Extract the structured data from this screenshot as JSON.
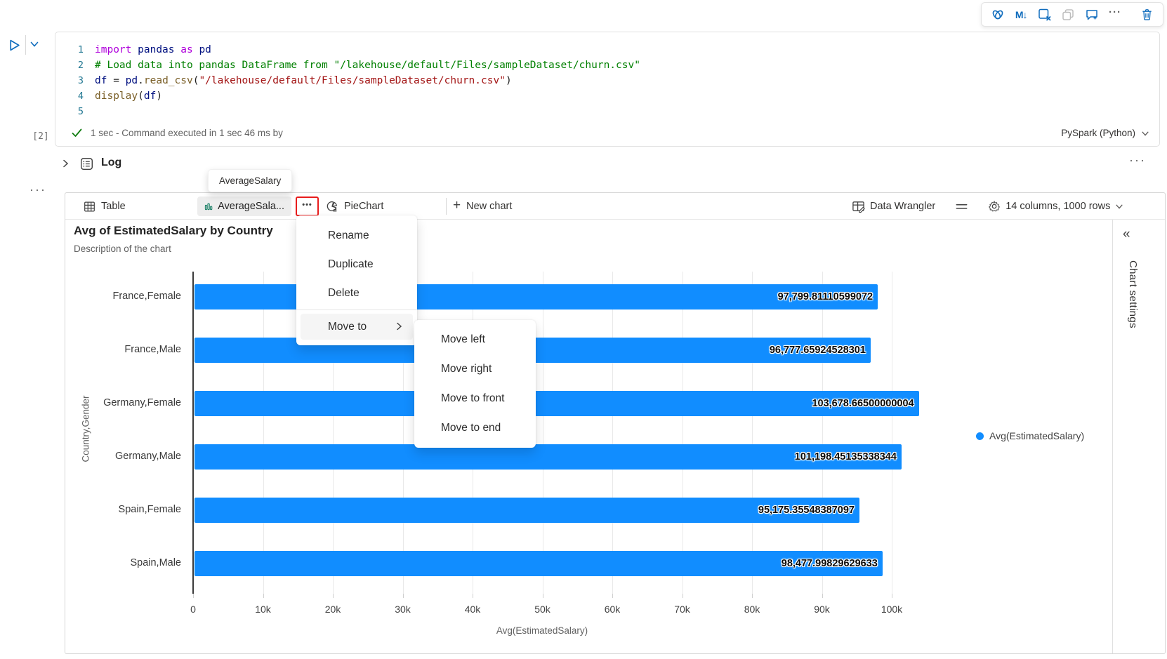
{
  "glyphs": {
    "more_dots": "•••",
    "ellipsis": "···",
    "collapse": "«",
    "plus": "+",
    "markdown": "M↓"
  },
  "cell_toolbar": {
    "icons": [
      "copilot-icon",
      "markdown-convert-icon",
      "clear-output-icon",
      "copy-cell-icon",
      "add-comment-icon",
      "more-options-icon",
      "delete-cell-icon"
    ]
  },
  "code_cell": {
    "execution_count": "[2]",
    "line_numbers": [
      "1",
      "2",
      "3",
      "4",
      "5"
    ],
    "lines": [
      [
        {
          "t": "import",
          "c": "kw"
        },
        {
          "t": " ",
          "c": "pl"
        },
        {
          "t": "pandas",
          "c": "mod"
        },
        {
          "t": " ",
          "c": "pl"
        },
        {
          "t": "as",
          "c": "kw"
        },
        {
          "t": " ",
          "c": "pl"
        },
        {
          "t": "pd",
          "c": "mod"
        }
      ],
      [
        {
          "t": "# Load data into pandas DataFrame from \"/lakehouse/default/Files/sampleDataset/churn.csv\"",
          "c": "com"
        }
      ],
      [
        {
          "t": "df",
          "c": "mod"
        },
        {
          "t": " = ",
          "c": "pl"
        },
        {
          "t": "pd",
          "c": "mod"
        },
        {
          "t": ".",
          "c": "pl"
        },
        {
          "t": "read_csv",
          "c": "fn"
        },
        {
          "t": "(",
          "c": "pl"
        },
        {
          "t": "\"/lakehouse/default/Files/sampleDataset/churn.csv\"",
          "c": "str"
        },
        {
          "t": ")",
          "c": "pl"
        }
      ],
      [
        {
          "t": "display",
          "c": "fn"
        },
        {
          "t": "(",
          "c": "pl"
        },
        {
          "t": "df",
          "c": "mod"
        },
        {
          "t": ")",
          "c": "pl"
        }
      ],
      []
    ],
    "status": {
      "message": "1 sec - Command executed in 1 sec 46 ms by",
      "kernel": "PySpark (Python)"
    }
  },
  "log_section": {
    "label": "Log"
  },
  "tooltip": {
    "text": "AverageSalary"
  },
  "tabs": {
    "table": "Table",
    "chart": "AverageSala...",
    "pie": "PieChart",
    "new_chart": "New chart"
  },
  "toolbar_right": {
    "data_wrangler": "Data Wrangler",
    "columns_info": "14 columns, 1000 rows"
  },
  "context_menu": {
    "items": [
      "Rename",
      "Duplicate",
      "Delete"
    ],
    "move_to": "Move to",
    "submenu": [
      "Move left",
      "Move right",
      "Move to front",
      "Move to end"
    ]
  },
  "settings_panel": {
    "label": "Chart settings"
  },
  "chart_data": {
    "type": "bar",
    "orientation": "horizontal",
    "title": "Avg of EstimatedSalary by Country",
    "subtitle": "Description of the chart",
    "categories": [
      "France,Female",
      "France,Male",
      "Germany,Female",
      "Germany,Male",
      "Spain,Female",
      "Spain,Male"
    ],
    "values": [
      97799.81110599072,
      96777.65924528301,
      103678.66500000004,
      101198.45135338344,
      95175.35548387097,
      98477.99829629633
    ],
    "value_labels": [
      "97,799.81110599072",
      "96,777.65924528301",
      "103,678.66500000004",
      "101,198.45135338344",
      "95,175.35548387097",
      "98,477.99829629633"
    ],
    "x_ticks": [
      "0",
      "10k",
      "20k",
      "30k",
      "40k",
      "50k",
      "60k",
      "70k",
      "80k",
      "90k",
      "100k"
    ],
    "xlim": [
      0,
      108000
    ],
    "xlabel": "Avg(EstimatedSalary)",
    "ylabel": "Country,Gender",
    "grid": true,
    "legend_position": "right",
    "legend_label": "Avg(EstimatedSalary)",
    "bar_color": "#118DFF"
  }
}
